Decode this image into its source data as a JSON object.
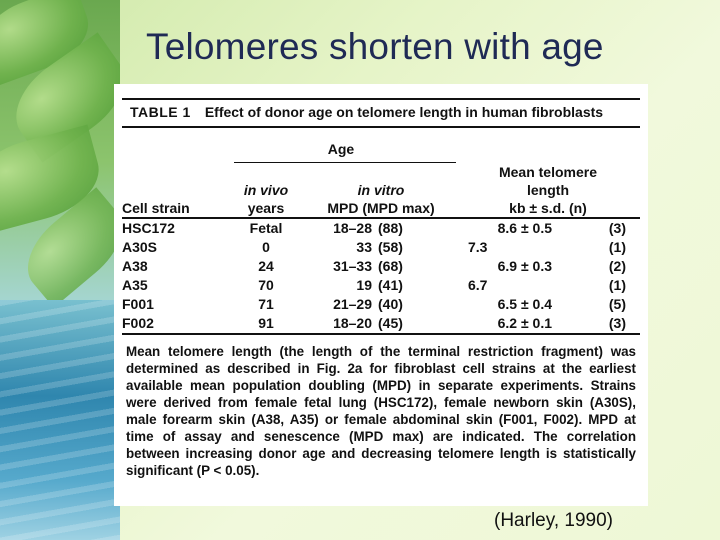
{
  "slide": {
    "title": "Telomeres shorten with age",
    "source": "(Harley, 1990)"
  },
  "table": {
    "label": "TABLE 1",
    "caption": "Effect of donor age on telomere length in human fibroblasts",
    "group_header": "Age",
    "columns": {
      "cell_strain": "Cell strain",
      "in_vivo_line1": "in vivo",
      "in_vivo_line2": "years",
      "in_vitro_line1": "in vitro",
      "in_vitro_line2": "MPD (MPD max)",
      "mean_line1": "Mean telomere",
      "mean_line2": "length",
      "mean_line3": "kb ± s.d. (n)"
    },
    "rows": [
      {
        "strain": "HSC172",
        "in_vivo": "Fetal",
        "mpd": "18–28",
        "mpd_max": "(88)",
        "length": "8.6 ± 0.5",
        "n": "(3)"
      },
      {
        "strain": "A30S",
        "in_vivo": "0",
        "mpd": "33",
        "mpd_max": "(58)",
        "length": "7.3",
        "n": "(1)"
      },
      {
        "strain": "A38",
        "in_vivo": "24",
        "mpd": "31–33",
        "mpd_max": "(68)",
        "length": "6.9 ± 0.3",
        "n": "(2)"
      },
      {
        "strain": "A35",
        "in_vivo": "70",
        "mpd": "19",
        "mpd_max": "(41)",
        "length": "6.7",
        "n": "(1)"
      },
      {
        "strain": "F001",
        "in_vivo": "71",
        "mpd": "21–29",
        "mpd_max": "(40)",
        "length": "6.5 ± 0.4",
        "n": "(5)"
      },
      {
        "strain": "F002",
        "in_vivo": "91",
        "mpd": "18–20",
        "mpd_max": "(45)",
        "length": "6.2 ± 0.1",
        "n": "(3)"
      }
    ],
    "footnote": "Mean telomere length (the length of the terminal restriction fragment) was determined as described in Fig. 2a for fibroblast cell strains at the earliest available mean population doubling (MPD) in separate experiments. Strains were derived from female fetal lung (HSC172), female newborn skin (A30S), male forearm skin (A38, A35) or female abdominal skin (F001, F002). MPD at time of assay and senescence (MPD max) are indicated. The correlation between increasing donor age and decreasing telomere length is statistically significant (P < 0.05)."
  }
}
